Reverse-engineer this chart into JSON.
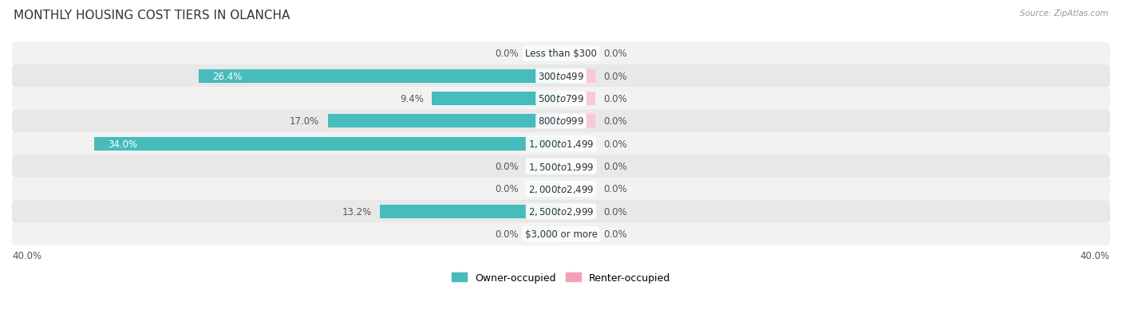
{
  "title": "MONTHLY HOUSING COST TIERS IN OLANCHA",
  "source": "Source: ZipAtlas.com",
  "categories": [
    "Less than $300",
    "$300 to $499",
    "$500 to $799",
    "$800 to $999",
    "$1,000 to $1,499",
    "$1,500 to $1,999",
    "$2,000 to $2,499",
    "$2,500 to $2,999",
    "$3,000 or more"
  ],
  "owner_values": [
    0.0,
    26.4,
    9.4,
    17.0,
    34.0,
    0.0,
    0.0,
    13.2,
    0.0
  ],
  "renter_values": [
    0.0,
    0.0,
    0.0,
    0.0,
    0.0,
    0.0,
    0.0,
    0.0,
    0.0
  ],
  "owner_color": "#46bcbc",
  "renter_color": "#f4a0b5",
  "owner_color_stub": "#9dd8d8",
  "renter_color_stub": "#f9c8d5",
  "row_bg_even": "#f2f2f2",
  "row_bg_odd": "#e8e8e8",
  "xlim": 40.0,
  "bar_height": 0.6,
  "stub_size": 2.5,
  "title_fontsize": 11,
  "label_fontsize": 8.5,
  "source_fontsize": 7.5,
  "legend_fontsize": 9,
  "axis_tick_fontsize": 8.5
}
